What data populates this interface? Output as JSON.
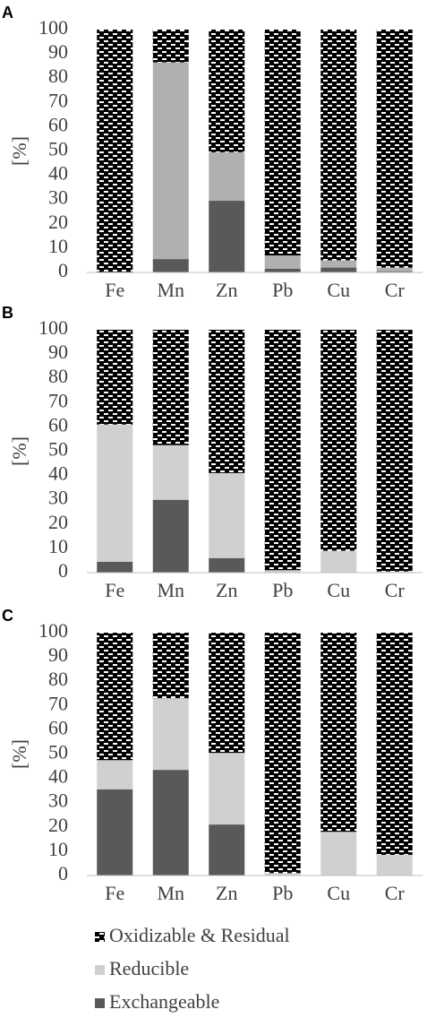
{
  "chart_data": [
    {
      "type": "bar",
      "stacked": true,
      "title": "A",
      "y_label": "[%]",
      "categories": [
        "Fe",
        "Mn",
        "Zn",
        "Pb",
        "Cu",
        "Cr"
      ],
      "series": [
        {
          "name": "Exchangeable",
          "color": "#595959",
          "values": [
            0,
            5.5,
            29.5,
            1.5,
            2,
            0.5
          ]
        },
        {
          "name": "Reducible",
          "color": "#b0b0b0",
          "values": [
            0,
            81,
            20,
            5.5,
            3,
            1.5
          ]
        },
        {
          "name": "Oxidizable & Residual",
          "color": "#000000",
          "hatch": true,
          "values": [
            100,
            13.5,
            50.5,
            93,
            95,
            98
          ]
        }
      ],
      "ylim": [
        0,
        100
      ],
      "yticks": [
        0,
        10,
        20,
        30,
        40,
        50,
        60,
        70,
        80,
        90,
        100
      ]
    },
    {
      "type": "bar",
      "stacked": true,
      "title": "B",
      "y_label": "[%]",
      "categories": [
        "Fe",
        "Mn",
        "Zn",
        "Pb",
        "Cu",
        "Cr"
      ],
      "series": [
        {
          "name": "Exchangeable",
          "color": "#595959",
          "values": [
            4.5,
            30,
            6,
            0,
            0,
            0
          ]
        },
        {
          "name": "Reducible",
          "color": "#d0d0d0",
          "values": [
            56.5,
            22.5,
            35,
            1,
            9,
            0.5
          ]
        },
        {
          "name": "Oxidizable & Residual",
          "color": "#000000",
          "hatch": true,
          "values": [
            39,
            47.5,
            59,
            99,
            91,
            99.5
          ]
        }
      ],
      "ylim": [
        0,
        100
      ],
      "yticks": [
        0,
        10,
        20,
        30,
        40,
        50,
        60,
        70,
        80,
        90,
        100
      ]
    },
    {
      "type": "bar",
      "stacked": true,
      "title": "C",
      "y_label": "[%]",
      "categories": [
        "Fe",
        "Mn",
        "Zn",
        "Pb",
        "Cu",
        "Cr"
      ],
      "series": [
        {
          "name": "Exchangeable",
          "color": "#595959",
          "values": [
            35.5,
            43.5,
            21,
            0,
            0,
            0
          ]
        },
        {
          "name": "Reducible",
          "color": "#d0d0d0",
          "values": [
            12,
            29.5,
            29.5,
            1,
            18,
            8.5
          ]
        },
        {
          "name": "Oxidizable & Residual",
          "color": "#000000",
          "hatch": true,
          "values": [
            52.5,
            27,
            49.5,
            99,
            82,
            91.5
          ]
        }
      ],
      "ylim": [
        0,
        100
      ],
      "yticks": [
        0,
        10,
        20,
        30,
        40,
        50,
        60,
        70,
        80,
        90,
        100
      ]
    }
  ]
}
